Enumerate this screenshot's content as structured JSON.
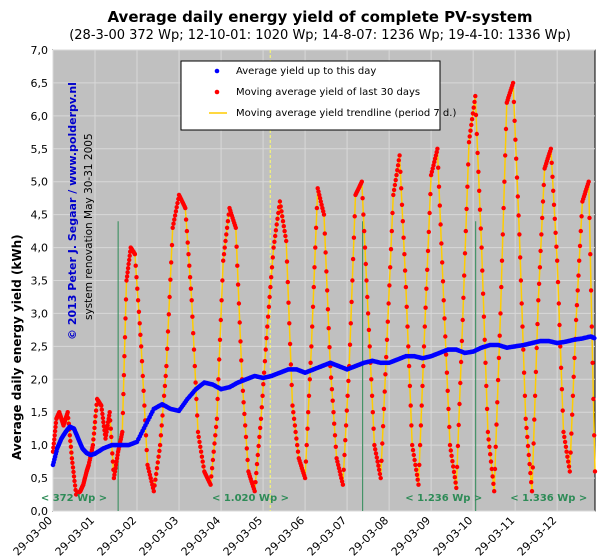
{
  "title": "Average daily energy yield of complete PV-system",
  "subtitle": "(28-3-00 372 Wp; 12-10-01: 1020 Wp; 14-8-07: 1236 Wp; 19-4-10: 1336 Wp)",
  "copyright": "© 2013 Peter J. Segaar / www.polderpv.nl",
  "renovation_note": "system renovation May 30-31 2005",
  "colors": {
    "plot_bg": "#c0c0c0",
    "avg_series": "#0000ff",
    "moving_avg_series": "#ff0000",
    "trendline": "#ffcc00",
    "marker_line": "#2e8b57",
    "renovation_line": "#ffff66",
    "period_text": "#2e8b57"
  },
  "periods": [
    {
      "label": "< 372  Wp >"
    },
    {
      "label": "< 1.020  Wp >"
    },
    {
      "label": "< 1.236  Wp >"
    },
    {
      "label": "< 1.336  Wp >"
    }
  ],
  "chart_data": {
    "type": "scatter",
    "title": "Average daily energy yield of complete PV-system",
    "ylabel": "Average daily energy yield (kWh)",
    "xlabel": "",
    "ylim": [
      0,
      7
    ],
    "xlim": [
      0,
      12.9
    ],
    "y_ticks": [
      "0,0",
      "0,5",
      "1,0",
      "1,5",
      "2,0",
      "2,5",
      "3,0",
      "3,5",
      "4,0",
      "4,5",
      "5,0",
      "5,5",
      "6,0",
      "6,5",
      "7,0"
    ],
    "x_ticks": [
      {
        "x": 0,
        "label": "29-03-00"
      },
      {
        "x": 1,
        "label": "29-03-01"
      },
      {
        "x": 2,
        "label": "29-03-02"
      },
      {
        "x": 3,
        "label": "29-03-03"
      },
      {
        "x": 4,
        "label": "29-03-04"
      },
      {
        "x": 5,
        "label": "29-03-05"
      },
      {
        "x": 6,
        "label": "29-03-06"
      },
      {
        "x": 7,
        "label": "29-03-07"
      },
      {
        "x": 8,
        "label": "29-03-08"
      },
      {
        "x": 9,
        "label": "29-03-09"
      },
      {
        "x": 10,
        "label": "29-03-10"
      },
      {
        "x": 11,
        "label": "29-03-11"
      },
      {
        "x": 12,
        "label": "29-03-12"
      }
    ],
    "grid": true,
    "legend": {
      "placement": "top-center",
      "entries": [
        {
          "label": "Average yield up to this day",
          "marker": "dot",
          "color": "#0000ff"
        },
        {
          "label": "Moving average yield of last 30 days",
          "marker": "dot",
          "color": "#ff0000"
        },
        {
          "label": "Moving average yield trendline (period 7 d.)",
          "marker": "line",
          "color": "#ffcc00"
        }
      ]
    },
    "vertical_markers": [
      {
        "x": 1.55,
        "kind": "capacity change"
      },
      {
        "x": 5.17,
        "kind": "system renovation"
      },
      {
        "x": 7.37,
        "kind": "capacity change"
      },
      {
        "x": 10.06,
        "kind": "capacity change"
      }
    ],
    "series": [
      {
        "name": "Average yield up to this day",
        "x": [
          0.0,
          0.1,
          0.2,
          0.3,
          0.4,
          0.5,
          0.6,
          0.7,
          0.8,
          0.9,
          1.0,
          1.2,
          1.4,
          1.6,
          1.8,
          2.0,
          2.2,
          2.4,
          2.6,
          2.8,
          3.0,
          3.2,
          3.4,
          3.6,
          3.8,
          4.0,
          4.2,
          4.4,
          4.6,
          4.8,
          5.0,
          5.2,
          5.4,
          5.6,
          5.8,
          6.0,
          6.2,
          6.4,
          6.6,
          6.8,
          7.0,
          7.2,
          7.4,
          7.6,
          7.8,
          8.0,
          8.2,
          8.4,
          8.6,
          8.8,
          9.0,
          9.2,
          9.4,
          9.6,
          9.8,
          10.0,
          10.2,
          10.4,
          10.6,
          10.8,
          11.0,
          11.2,
          11.4,
          11.6,
          11.8,
          12.0,
          12.2,
          12.4,
          12.6,
          12.8,
          12.9
        ],
        "values": [
          0.7,
          0.95,
          1.1,
          1.2,
          1.28,
          1.25,
          1.1,
          0.95,
          0.88,
          0.85,
          0.87,
          0.95,
          1.0,
          1.0,
          1.0,
          1.05,
          1.3,
          1.55,
          1.62,
          1.55,
          1.52,
          1.7,
          1.85,
          1.95,
          1.92,
          1.85,
          1.88,
          1.95,
          2.0,
          2.05,
          2.02,
          2.05,
          2.1,
          2.15,
          2.15,
          2.1,
          2.15,
          2.2,
          2.25,
          2.2,
          2.15,
          2.2,
          2.25,
          2.28,
          2.25,
          2.25,
          2.3,
          2.35,
          2.35,
          2.32,
          2.35,
          2.4,
          2.45,
          2.45,
          2.4,
          2.42,
          2.48,
          2.52,
          2.52,
          2.48,
          2.5,
          2.52,
          2.55,
          2.58,
          2.58,
          2.55,
          2.57,
          2.6,
          2.62,
          2.65,
          2.62
        ]
      },
      {
        "name": "Moving average yield of last 30 days",
        "x": [
          0.0,
          0.08,
          0.15,
          0.25,
          0.35,
          0.45,
          0.55,
          0.65,
          0.72,
          0.8,
          0.85,
          0.95,
          1.05,
          1.15,
          1.25,
          1.35,
          1.45,
          1.55,
          1.65,
          1.75,
          1.85,
          1.95,
          2.1,
          2.25,
          2.4,
          2.55,
          2.7,
          2.85,
          3.0,
          3.15,
          3.3,
          3.45,
          3.6,
          3.75,
          3.9,
          4.05,
          4.2,
          4.35,
          4.5,
          4.65,
          4.8,
          4.95,
          5.1,
          5.25,
          5.4,
          5.55,
          5.7,
          5.85,
          6.0,
          6.15,
          6.3,
          6.45,
          6.6,
          6.75,
          6.9,
          7.05,
          7.2,
          7.35,
          7.5,
          7.65,
          7.8,
          7.95,
          8.1,
          8.25,
          8.4,
          8.55,
          8.7,
          8.85,
          9.0,
          9.15,
          9.3,
          9.45,
          9.6,
          9.75,
          9.9,
          10.05,
          10.2,
          10.35,
          10.5,
          10.65,
          10.8,
          10.95,
          11.1,
          11.25,
          11.4,
          11.55,
          11.7,
          11.85,
          12.0,
          12.15,
          12.3,
          12.45,
          12.6,
          12.75,
          12.9
        ],
        "values": [
          0.9,
          1.4,
          1.5,
          1.3,
          1.5,
          0.8,
          0.25,
          0.3,
          0.4,
          0.6,
          0.7,
          1.0,
          1.7,
          1.6,
          1.1,
          1.5,
          0.5,
          0.9,
          1.2,
          3.5,
          4.0,
          3.9,
          2.5,
          0.7,
          0.3,
          1.0,
          2.2,
          4.3,
          4.8,
          4.6,
          3.2,
          1.2,
          0.6,
          0.4,
          1.4,
          3.8,
          4.6,
          4.3,
          2.0,
          0.6,
          0.3,
          1.4,
          2.8,
          4.0,
          4.7,
          4.1,
          1.6,
          0.8,
          0.5,
          2.5,
          4.9,
          4.5,
          2.2,
          0.8,
          0.4,
          2.2,
          4.8,
          5.0,
          3.0,
          1.0,
          0.5,
          2.6,
          4.8,
          5.4,
          3.4,
          1.0,
          0.4,
          2.8,
          5.1,
          5.5,
          3.2,
          1.0,
          0.35,
          2.9,
          5.6,
          6.3,
          4.0,
          1.2,
          0.3,
          3.0,
          6.2,
          6.5,
          4.2,
          1.4,
          0.3,
          3.2,
          5.2,
          5.5,
          3.8,
          1.2,
          0.6,
          2.9,
          4.7,
          5.0,
          0.6
        ]
      }
    ]
  }
}
